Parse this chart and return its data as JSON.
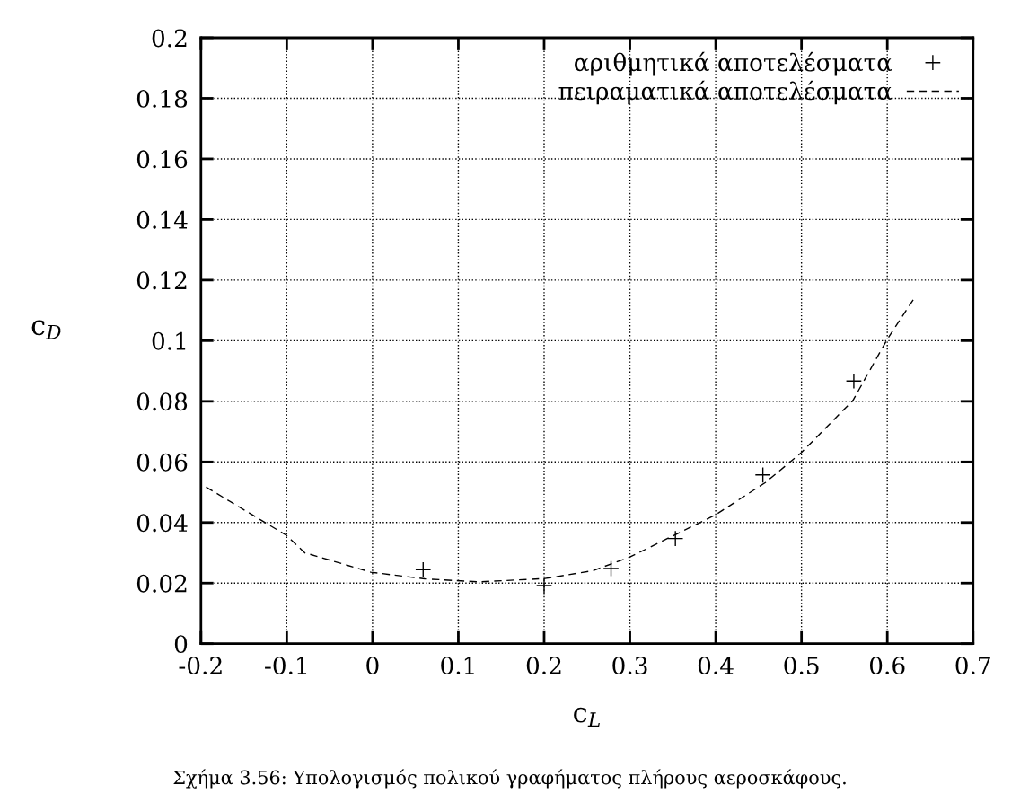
{
  "chart_data": {
    "type": "scatter",
    "xlabel": "c$_{L}$",
    "ylabel": "c$_{D}$",
    "xlim": [
      -0.2,
      0.7
    ],
    "xticks": [
      -0.2,
      -0.1,
      0,
      0.1,
      0.2,
      0.3,
      0.4,
      0.5,
      0.6,
      0.7
    ],
    "ylim": [
      0,
      0.2
    ],
    "yticks": [
      0,
      0.02,
      0.04,
      0.06,
      0.08,
      0.1,
      0.12,
      0.14,
      0.16,
      0.18,
      0.2
    ],
    "grid": true,
    "legend": "top right",
    "series": [
      {
        "name": "αριθμητικά αποτελέσματα",
        "marker": "cross",
        "color": "#000000",
        "x": [
          0.059,
          0.2,
          0.278,
          0.353,
          0.455,
          0.561
        ],
        "values": [
          0.0244,
          0.0192,
          0.0248,
          0.0347,
          0.0557,
          0.0867
        ]
      },
      {
        "name": "πειραματικά αποτελέσματα",
        "type": "line",
        "line_style": "dashed",
        "color": "#000000",
        "x": [
          -0.194,
          -0.1,
          -0.079,
          -0.002,
          0.061,
          0.124,
          0.201,
          0.257,
          0.3,
          0.399,
          0.458,
          0.5,
          0.56,
          0.6,
          0.632
        ],
        "values": [
          0.0517,
          0.0357,
          0.03,
          0.0236,
          0.0214,
          0.0204,
          0.0215,
          0.0241,
          0.0286,
          0.0424,
          0.0532,
          0.0631,
          0.0803,
          0.1005,
          0.1143
        ]
      }
    ],
    "annotations": [
      "Σχήμα 3.56: Υπολογισμός πολικού γραφήματος πλήρους αεροσκάφους."
    ]
  }
}
